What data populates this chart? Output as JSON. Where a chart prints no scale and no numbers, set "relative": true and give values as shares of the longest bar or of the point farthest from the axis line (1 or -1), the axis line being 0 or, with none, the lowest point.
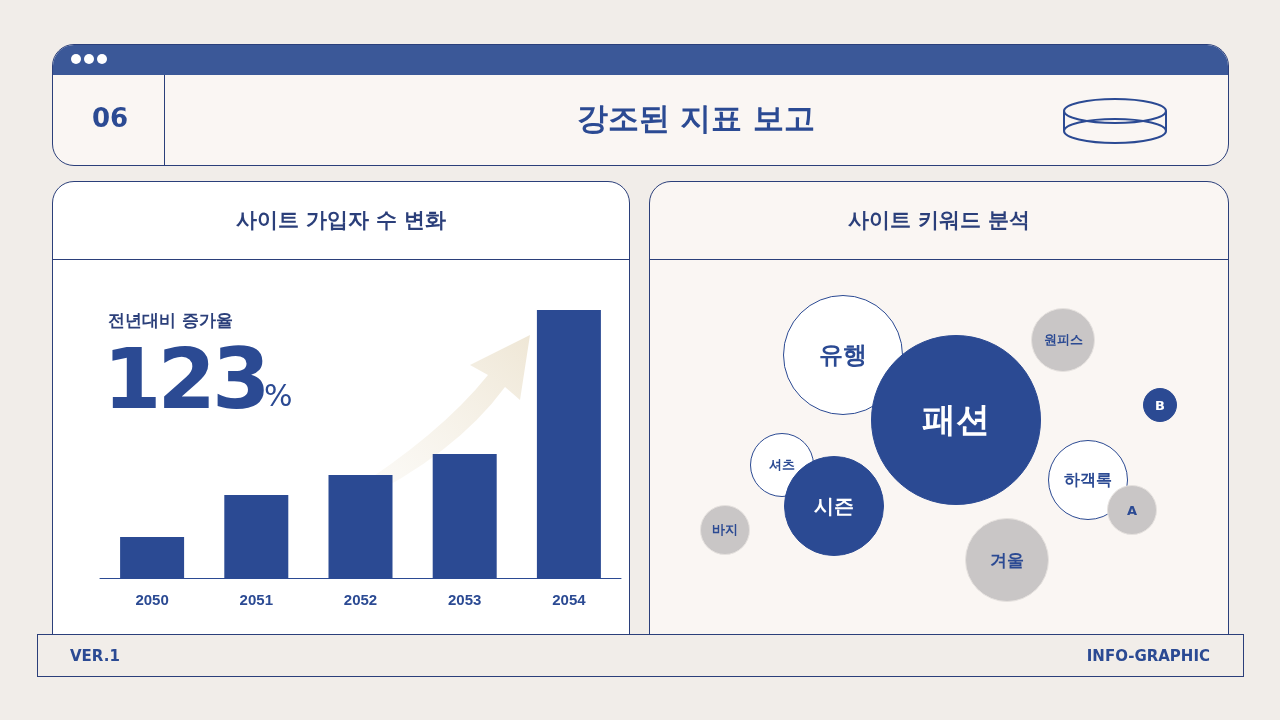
{
  "chart_data": [
    {
      "type": "bar",
      "title": "사이트 가입자 수 변화",
      "relative": true,
      "categories": [
        "2050",
        "2051",
        "2052",
        "2053",
        "2054"
      ],
      "values": [
        0.153,
        0.31,
        0.384,
        0.463,
        1
      ],
      "color": "#2b4a93",
      "annotations": [
        "06",
        "강조된 지표 보고",
        "전년대비 증가율",
        "123",
        "%",
        "VER.1",
        "INFO-GRAPHIC"
      ]
    },
    {
      "type": "other",
      "title": "사이트 키워드 분석",
      "annotations": [
        "유행",
        "패션",
        "원피스",
        "B",
        "셔츠",
        "시즌",
        "하객록",
        "A",
        "바지",
        "겨울"
      ]
    }
  ]
}
